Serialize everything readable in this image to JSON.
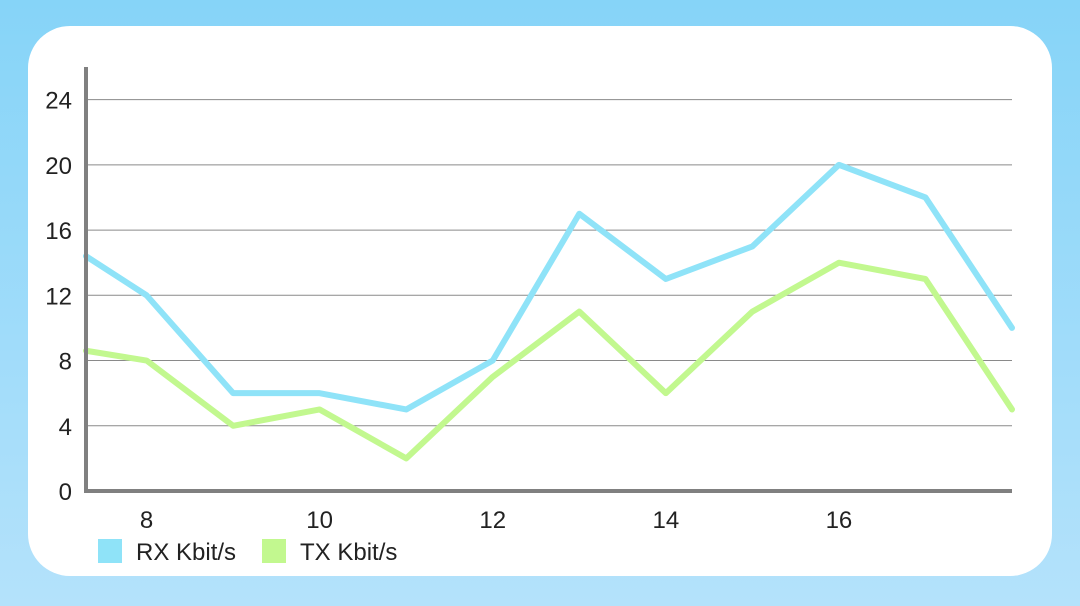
{
  "chart_data": {
    "type": "line",
    "x": [
      7.3,
      8,
      9,
      10,
      11,
      12,
      13,
      14,
      15,
      16,
      17,
      18
    ],
    "xticks": [
      "8",
      "10",
      "12",
      "14",
      "16"
    ],
    "yticks": [
      "0",
      "4",
      "8",
      "12",
      "16",
      "20",
      "24"
    ],
    "xlim": [
      7.3,
      18
    ],
    "ylim": [
      0,
      26
    ],
    "grid": true,
    "legend_position": "bottom-left",
    "series": [
      {
        "name": "RX Kbit/s",
        "color": "#8fe3f8",
        "values": [
          14.4,
          12,
          6,
          6,
          5,
          8,
          17,
          13,
          15,
          20,
          18,
          10
        ]
      },
      {
        "name": "TX Kbit/s",
        "color": "#c2f88f",
        "values": [
          8.6,
          8,
          4,
          5,
          2,
          7,
          11,
          6,
          11,
          14,
          13,
          5
        ]
      }
    ]
  }
}
